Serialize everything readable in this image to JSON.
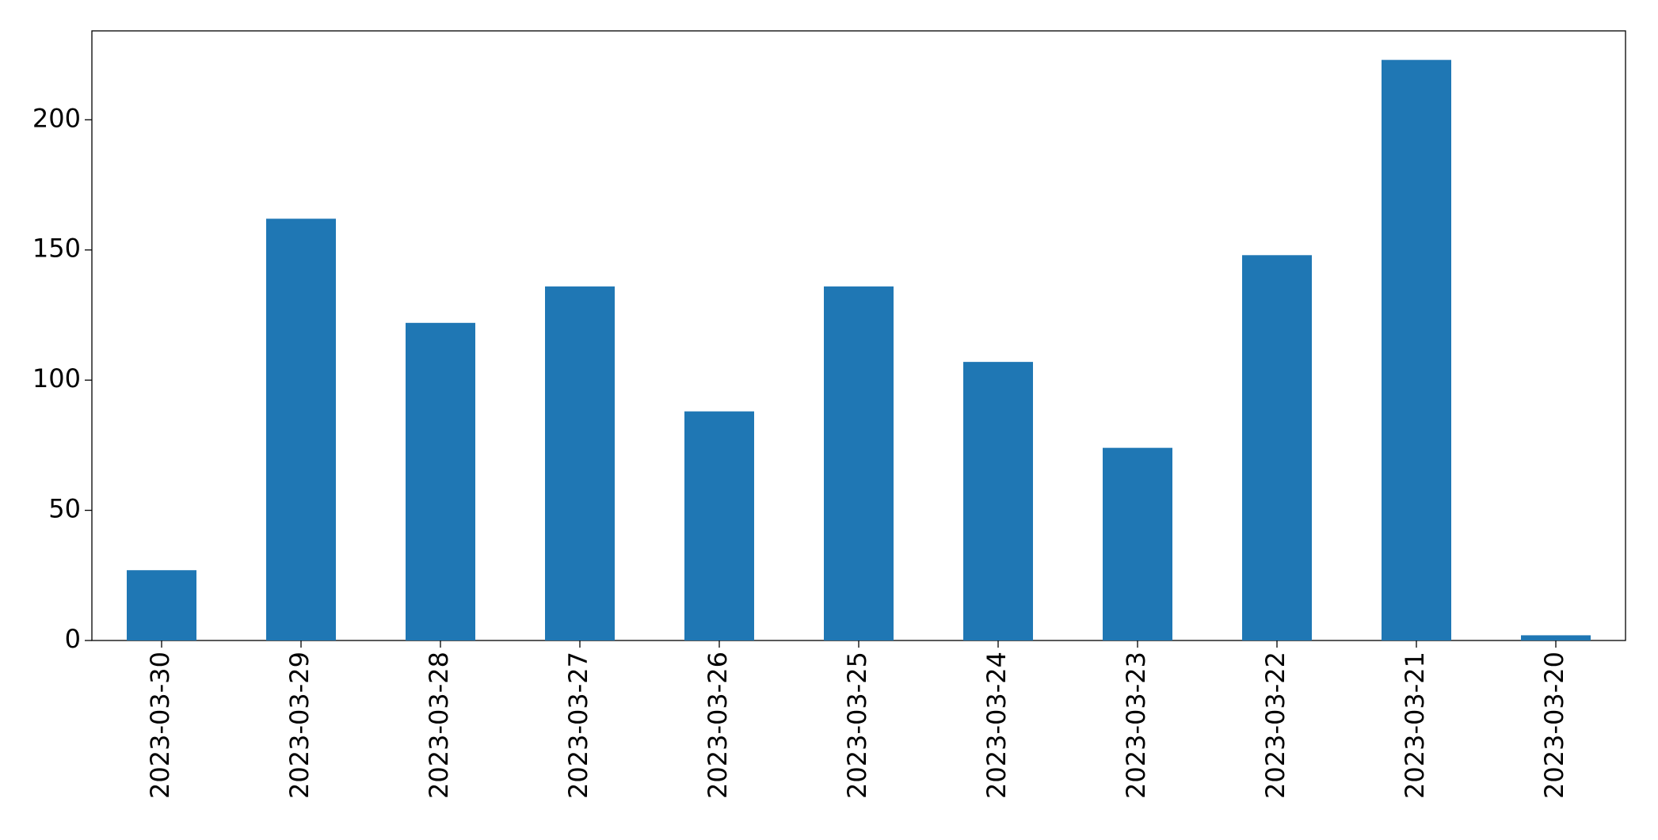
{
  "chart_data": {
    "type": "bar",
    "categories": [
      "2023-03-30",
      "2023-03-29",
      "2023-03-28",
      "2023-03-27",
      "2023-03-26",
      "2023-03-25",
      "2023-03-24",
      "2023-03-23",
      "2023-03-22",
      "2023-03-21",
      "2023-03-20"
    ],
    "values": [
      27,
      162,
      122,
      136,
      88,
      136,
      107,
      74,
      148,
      223,
      2
    ],
    "color": "#1f77b4",
    "ylim": [
      0,
      234.15
    ],
    "yticks": [
      0,
      50,
      100,
      150,
      200
    ],
    "grid": false
  }
}
